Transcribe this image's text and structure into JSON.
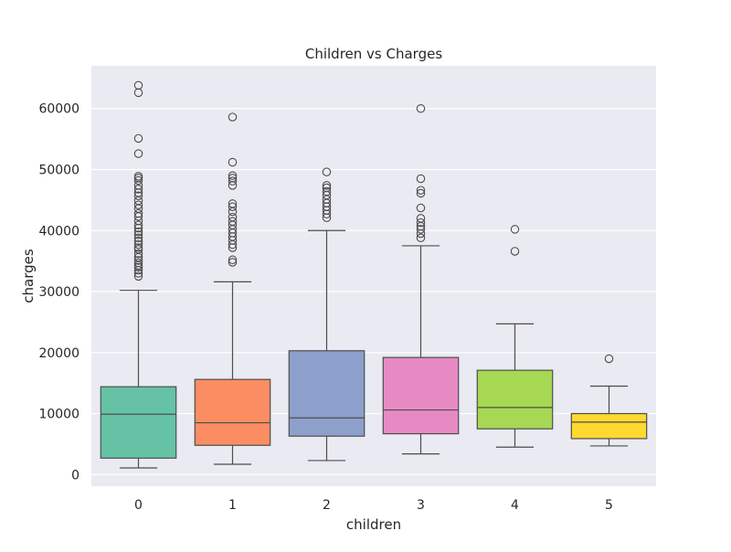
{
  "chart_data": {
    "type": "boxplot",
    "title": "Children vs Charges",
    "xlabel": "children",
    "ylabel": "charges",
    "categories": [
      "0",
      "1",
      "2",
      "3",
      "4",
      "5"
    ],
    "ylim": [
      -1900,
      67000
    ],
    "yticks": [
      0,
      10000,
      20000,
      30000,
      40000,
      50000,
      60000
    ],
    "ytick_labels": [
      "0",
      "10000",
      "20000",
      "30000",
      "40000",
      "50000",
      "60000"
    ],
    "grid": true,
    "background": "#eaeaf2",
    "colors": [
      "#66c2a5",
      "#fc8d62",
      "#8da0cb",
      "#e78ac3",
      "#a6d854",
      "#ffd92f"
    ],
    "boxes": [
      {
        "category": "0",
        "whislo": 1100,
        "q1": 2700,
        "med": 9900,
        "q3": 14400,
        "whishi": 30200,
        "fliers": [
          32500,
          33000,
          33500,
          34000,
          34300,
          34700,
          35100,
          35600,
          36200,
          36900,
          37200,
          37700,
          38300,
          38800,
          39300,
          39800,
          40400,
          40900,
          41600,
          42300,
          42800,
          43600,
          44200,
          44900,
          45700,
          46200,
          46800,
          47400,
          48200,
          48600,
          48900,
          52600,
          55100,
          62600,
          63800
        ]
      },
      {
        "category": "1",
        "whislo": 1700,
        "q1": 4800,
        "med": 8500,
        "q3": 15600,
        "whishi": 31600,
        "fliers": [
          34800,
          35200,
          37200,
          37700,
          38400,
          39000,
          39600,
          40200,
          40900,
          41500,
          42200,
          43100,
          43900,
          44400,
          47400,
          48100,
          48600,
          49000,
          51200,
          58600
        ]
      },
      {
        "category": "2",
        "whislo": 2300,
        "q1": 6300,
        "med": 9300,
        "q3": 20300,
        "whishi": 40000,
        "fliers": [
          42100,
          42700,
          43300,
          43900,
          44500,
          45100,
          45800,
          46400,
          47000,
          47400,
          49600
        ]
      },
      {
        "category": "3",
        "whislo": 3400,
        "q1": 6700,
        "med": 10600,
        "q3": 19200,
        "whishi": 37500,
        "fliers": [
          38800,
          39500,
          40200,
          40700,
          41300,
          42000,
          43700,
          46100,
          46600,
          48500,
          60000
        ]
      },
      {
        "category": "4",
        "whislo": 4500,
        "q1": 7500,
        "med": 11000,
        "q3": 17100,
        "whishi": 24700,
        "fliers": [
          36600,
          40200
        ]
      },
      {
        "category": "5",
        "whislo": 4700,
        "q1": 5900,
        "med": 8600,
        "q3": 10000,
        "whishi": 14500,
        "fliers": [
          19000
        ]
      }
    ]
  }
}
